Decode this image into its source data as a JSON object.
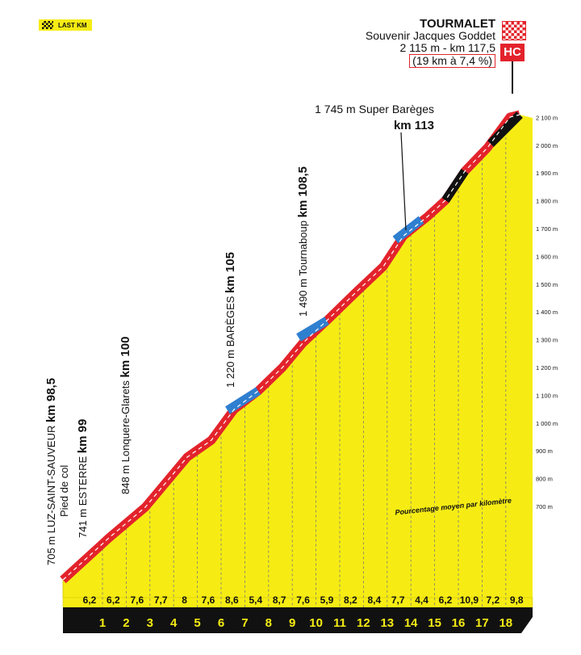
{
  "badge": {
    "label": "LAST KM",
    "icon": "checkered-flag-icon"
  },
  "summit": {
    "name": "TOURMALET",
    "subtitle": "Souvenir Jacques Goddet",
    "alt_km": "2 115 m - km 117,5",
    "climb": "(19 km à 7,4 %)",
    "category": "HC"
  },
  "colors": {
    "ground": "#f6ec14",
    "road": "#e3232b",
    "feed": "#2f7fd0",
    "steep": "#111111",
    "dash": "#ffffff"
  },
  "chart_data": {
    "type": "area",
    "title": "",
    "subtitle": "Pourcentage moyen par kilomètre",
    "ylim": [
      700,
      2100
    ],
    "y_ticks": [
      "700 m",
      "800 m",
      "900 m",
      "1 000 m",
      "1 100 m",
      "1 200 m",
      "1 300 m",
      "1 400 m",
      "1 500 m",
      "1 600 m",
      "1 700 m",
      "1 800 m",
      "1 900 m",
      "2 000 m",
      "2 100 m"
    ],
    "km_labels": [
      "1",
      "2",
      "3",
      "4",
      "5",
      "6",
      "7",
      "8",
      "9",
      "10",
      "11",
      "12",
      "13",
      "14",
      "15",
      "16",
      "17",
      "18"
    ],
    "gradients": [
      "6,2",
      "6,2",
      "7,6",
      "7,7",
      "8",
      "7,6",
      "8,6",
      "5,4",
      "8,7",
      "7,6",
      "5,9",
      "8,2",
      "8,4",
      "7,7",
      "4,4",
      "6,2",
      "10,9",
      "7,2",
      "9,8"
    ],
    "waypoints": [
      {
        "label": "705 m LUZ-SAINT-SAUVEUR ",
        "km": "km 98,5",
        "extra": "Pied de col"
      },
      {
        "label": "741 m ESTERRE ",
        "km": "km 99",
        "extra": ""
      },
      {
        "label": "848 m Lonquere-Glarets ",
        "km": "km 100",
        "extra": ""
      },
      {
        "label": "1 220 m BARÈGES ",
        "km": "km 105",
        "extra": ""
      },
      {
        "label": "1 490 m Tournaboup ",
        "km": "km 108,5",
        "extra": ""
      },
      {
        "label": "1 745 m Super Barèges",
        "km": "km 113",
        "extra": ""
      }
    ]
  }
}
